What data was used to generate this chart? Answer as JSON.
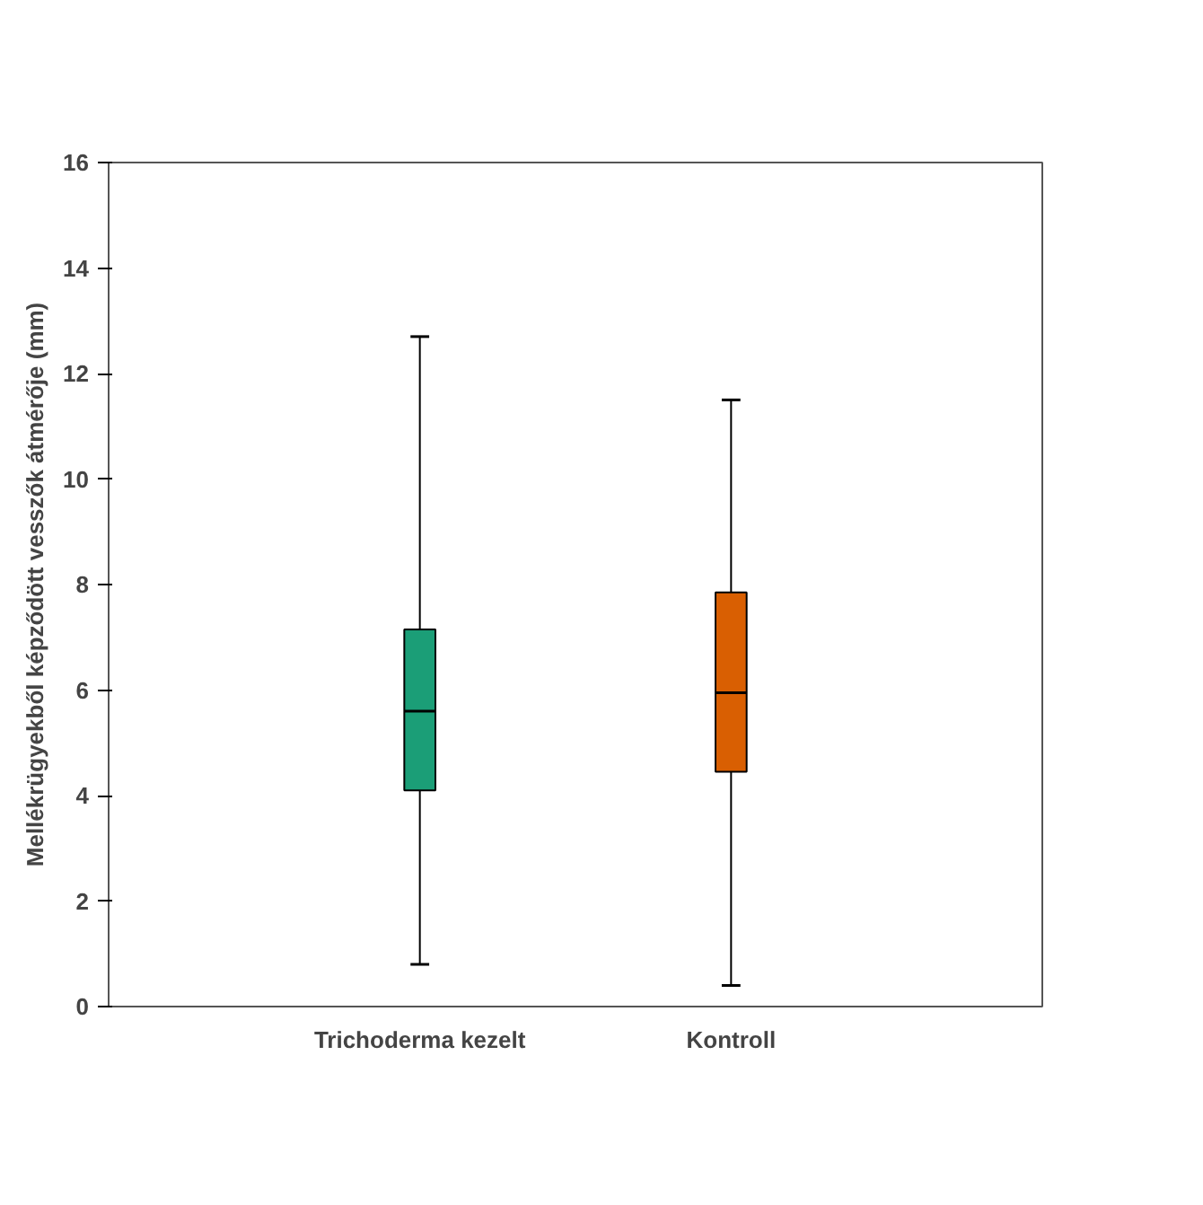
{
  "chart_data": {
    "type": "box",
    "ylabel": "Mellékrügyekből képződött vesszők átmérője (mm)",
    "categories": [
      "Trichoderma kezelt",
      "Kontroll"
    ],
    "colors": [
      "#1b9e77",
      "#d95f02"
    ],
    "boxes": [
      {
        "low": 0.8,
        "q1": 4.1,
        "median": 5.6,
        "q3": 7.15,
        "high": 12.7
      },
      {
        "low": 0.4,
        "q1": 4.45,
        "median": 5.95,
        "q3": 7.85,
        "high": 11.5
      }
    ],
    "ylim": [
      0,
      16
    ],
    "yticks": [
      0,
      2,
      4,
      6,
      8,
      10,
      12,
      14,
      16
    ],
    "grid": false
  }
}
